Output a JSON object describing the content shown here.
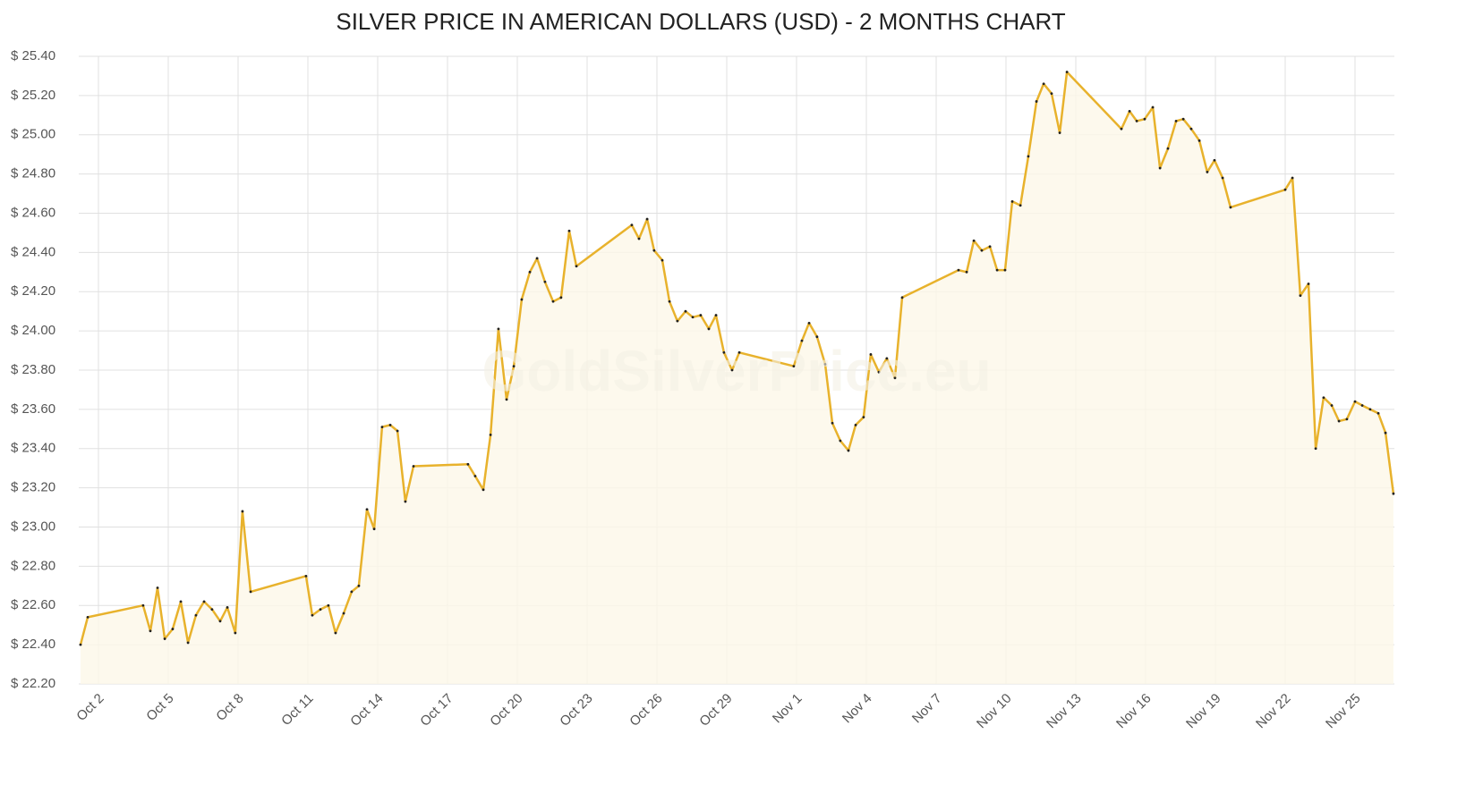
{
  "chart_data": {
    "type": "area",
    "title": "SILVER PRICE IN AMERICAN DOLLARS (USD) - 2 MONTHS CHART",
    "watermark": "GoldSilverPrice.eu",
    "color": "#e8b22c",
    "fill": "#fdf8e8",
    "grid": true,
    "xlim": [
      1.154,
      57.692
    ],
    "ylim": [
      22.2,
      25.4
    ],
    "xticks": [
      {
        "value": 2,
        "label": "Oct 2"
      },
      {
        "value": 5,
        "label": "Oct 5"
      },
      {
        "value": 8,
        "label": "Oct 8"
      },
      {
        "value": 11,
        "label": "Oct 11"
      },
      {
        "value": 14,
        "label": "Oct 14"
      },
      {
        "value": 17,
        "label": "Oct 17"
      },
      {
        "value": 20,
        "label": "Oct 20"
      },
      {
        "value": 23,
        "label": "Oct 23"
      },
      {
        "value": 26,
        "label": "Oct 26"
      },
      {
        "value": 29,
        "label": "Oct 29"
      },
      {
        "value": 32,
        "label": "Nov 1"
      },
      {
        "value": 35,
        "label": "Nov 4"
      },
      {
        "value": 38,
        "label": "Nov 7"
      },
      {
        "value": 41,
        "label": "Nov 10"
      },
      {
        "value": 44,
        "label": "Nov 13"
      },
      {
        "value": 47,
        "label": "Nov 16"
      },
      {
        "value": 50,
        "label": "Nov 19"
      },
      {
        "value": 53,
        "label": "Nov 22"
      },
      {
        "value": 56,
        "label": "Nov 25"
      }
    ],
    "yticks": [
      {
        "value": 22.2,
        "label": "$ 22.20"
      },
      {
        "value": 22.4,
        "label": "$ 22.40"
      },
      {
        "value": 22.6,
        "label": "$ 22.60"
      },
      {
        "value": 22.8,
        "label": "$ 22.80"
      },
      {
        "value": 23.0,
        "label": "$ 23.00"
      },
      {
        "value": 23.2,
        "label": "$ 23.20"
      },
      {
        "value": 23.4,
        "label": "$ 23.40"
      },
      {
        "value": 23.6,
        "label": "$ 23.60"
      },
      {
        "value": 23.8,
        "label": "$ 23.80"
      },
      {
        "value": 24.0,
        "label": "$ 24.00"
      },
      {
        "value": 24.2,
        "label": "$ 24.20"
      },
      {
        "value": 24.4,
        "label": "$ 24.40"
      },
      {
        "value": 24.6,
        "label": "$ 24.60"
      },
      {
        "value": 24.8,
        "label": "$ 24.80"
      },
      {
        "value": 25.0,
        "label": "$ 25.00"
      },
      {
        "value": 25.2,
        "label": "$ 25.20"
      },
      {
        "value": 25.4,
        "label": "$ 25.40"
      }
    ],
    "x": [
      1.23,
      1.54,
      3.92,
      4.23,
      4.54,
      4.85,
      5.19,
      5.54,
      5.85,
      6.19,
      6.54,
      6.88,
      7.23,
      7.54,
      7.88,
      8.19,
      8.54,
      10.92,
      11.19,
      11.54,
      11.88,
      12.19,
      12.54,
      12.88,
      13.19,
      13.54,
      13.85,
      14.19,
      14.54,
      14.85,
      15.19,
      15.54,
      17.88,
      18.19,
      18.54,
      18.85,
      19.19,
      19.54,
      19.85,
      20.19,
      20.54,
      20.85,
      21.19,
      21.54,
      21.88,
      22.23,
      22.54,
      24.92,
      25.23,
      25.58,
      25.88,
      26.23,
      26.54,
      26.88,
      27.23,
      27.54,
      27.88,
      28.23,
      28.54,
      28.88,
      29.23,
      29.54,
      31.88,
      32.23,
      32.54,
      32.88,
      33.23,
      33.54,
      33.88,
      34.23,
      34.54,
      34.88,
      35.19,
      35.54,
      35.88,
      36.23,
      36.54,
      38.96,
      39.31,
      39.62,
      39.96,
      40.31,
      40.62,
      40.96,
      41.27,
      41.62,
      41.96,
      42.31,
      42.62,
      42.96,
      43.31,
      43.62,
      45.96,
      46.31,
      46.62,
      46.96,
      47.31,
      47.62,
      47.96,
      48.31,
      48.62,
      48.96,
      49.31,
      49.65,
      49.96,
      50.31,
      50.65,
      53.0,
      53.31,
      53.65,
      54.0,
      54.31,
      54.65,
      55.0,
      55.31,
      55.65,
      56.0,
      56.31,
      56.65,
      57.0,
      57.31,
      57.65
    ],
    "values": [
      22.4,
      22.54,
      22.6,
      22.47,
      22.69,
      22.43,
      22.48,
      22.62,
      22.41,
      22.55,
      22.62,
      22.58,
      22.52,
      22.59,
      22.46,
      23.08,
      22.67,
      22.75,
      22.55,
      22.58,
      22.6,
      22.46,
      22.56,
      22.67,
      22.7,
      23.09,
      22.99,
      23.51,
      23.52,
      23.49,
      23.13,
      23.31,
      23.32,
      23.26,
      23.19,
      23.47,
      24.01,
      23.65,
      23.82,
      24.16,
      24.3,
      24.37,
      24.25,
      24.15,
      24.17,
      24.51,
      24.33,
      24.54,
      24.47,
      24.57,
      24.41,
      24.36,
      24.15,
      24.05,
      24.1,
      24.07,
      24.08,
      24.01,
      24.08,
      23.89,
      23.8,
      23.89,
      23.82,
      23.95,
      24.04,
      23.97,
      23.83,
      23.53,
      23.44,
      23.39,
      23.52,
      23.56,
      23.88,
      23.79,
      23.86,
      23.76,
      24.17,
      24.31,
      24.3,
      24.46,
      24.41,
      24.43,
      24.31,
      24.31,
      24.66,
      24.64,
      24.89,
      25.17,
      25.26,
      25.21,
      25.01,
      25.32,
      25.03,
      25.12,
      25.07,
      25.08,
      25.14,
      24.83,
      24.93,
      25.07,
      25.08,
      25.03,
      24.97,
      24.81,
      24.87,
      24.78,
      24.63,
      24.72,
      24.78,
      24.18,
      24.24,
      23.4,
      23.66,
      23.62,
      23.54,
      23.55,
      23.64,
      23.62,
      23.6,
      23.58,
      23.48,
      23.17
    ]
  }
}
